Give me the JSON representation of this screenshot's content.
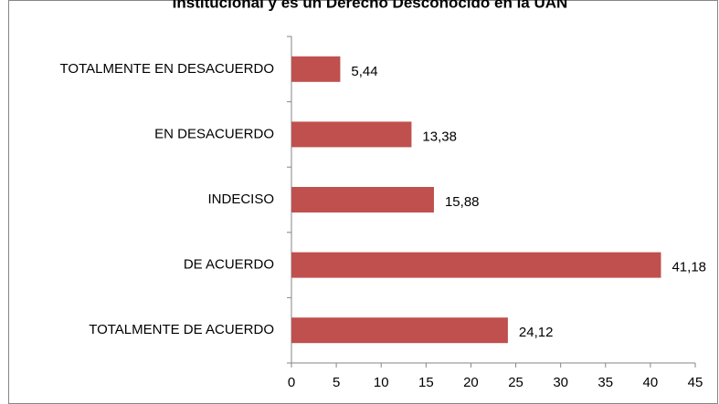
{
  "chart_data": {
    "type": "bar",
    "orientation": "horizontal",
    "title": "Institucional y es un Derecho Desconocido en la UAN",
    "categories": [
      "TOTALMENTE EN DESACUERDO",
      "EN DESACUERDO",
      "INDECISO",
      "DE ACUERDO",
      "TOTALMENTE DE ACUERDO"
    ],
    "values": [
      5.44,
      13.38,
      15.88,
      41.18,
      24.12
    ],
    "value_labels": [
      "5,44",
      "13,38",
      "15,88",
      "41,18",
      "24,12"
    ],
    "color": "#c0504d",
    "xlim": [
      0,
      45
    ],
    "xticks": [
      0,
      5,
      10,
      15,
      20,
      25,
      30,
      35,
      40,
      45
    ],
    "grid": false
  }
}
